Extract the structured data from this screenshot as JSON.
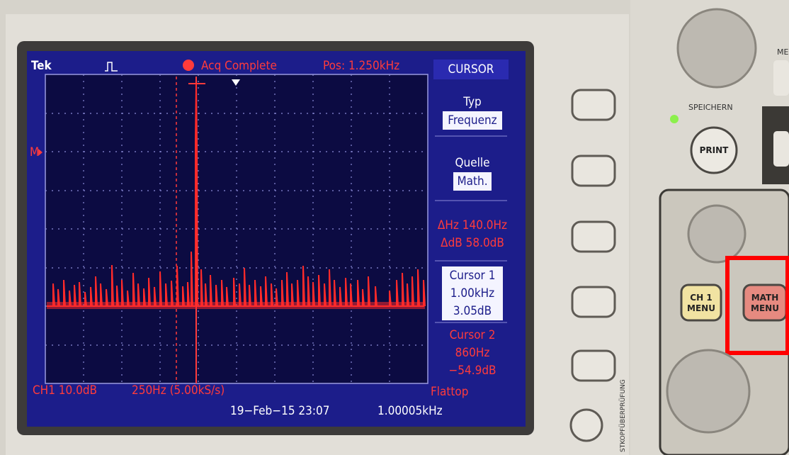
{
  "screen": {
    "brand": "Tek",
    "status": "Acq Complete",
    "position": "Pos: 1.250kHz",
    "marker": "M",
    "menu": {
      "title": "CURSOR",
      "items": [
        {
          "label": "Typ",
          "value": "Frequenz"
        },
        {
          "label": "Quelle",
          "value": "Math."
        },
        {
          "lines": [
            "ΔHz 140.0Hz",
            "ΔdB 58.0dB"
          ]
        },
        {
          "label": "Cursor 1",
          "lines": [
            "1.00kHz",
            "3.05dB"
          ]
        },
        {
          "label": "Cursor 2",
          "lines": [
            "860Hz",
            "−54.9dB"
          ]
        }
      ]
    },
    "footer": {
      "channel": "CH1 10.0dB",
      "span": "250Hz (5.00kS/s)",
      "window": "Flattop",
      "date": "19−Feb−15 23:07",
      "frequency": "1.00005kHz"
    }
  },
  "panel": {
    "partial_label": "ME",
    "store": "SPEICHERN",
    "print": "PRINT",
    "ch1_menu": [
      "CH 1",
      "MENU"
    ],
    "math_menu": [
      "MATH",
      "MENU"
    ],
    "probe_check": "STKOPFÜBERPRÜFUNG"
  }
}
